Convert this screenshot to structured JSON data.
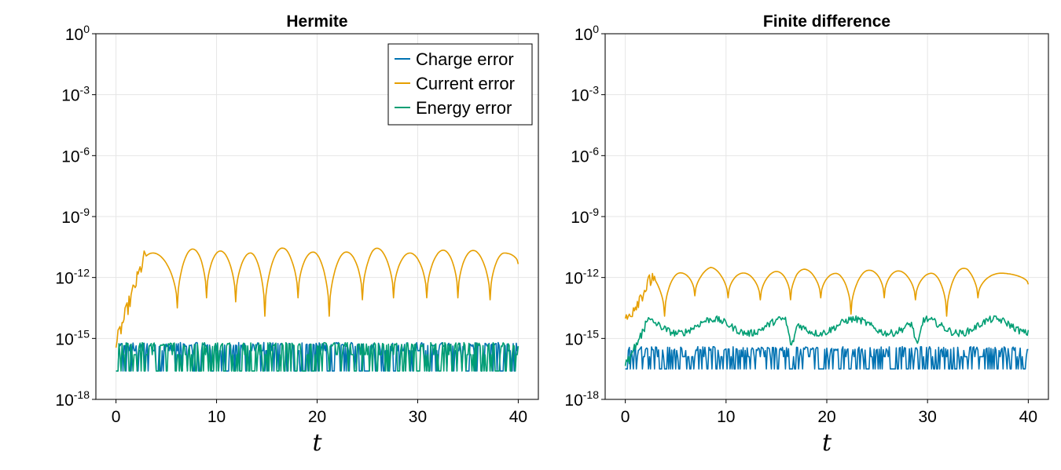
{
  "colors": {
    "charge": "#0072b2",
    "current": "#e69f00",
    "energy": "#009e73",
    "grid": "#e6e6e6",
    "frame": "#333333"
  },
  "legend": {
    "placement": "top-right",
    "entries": [
      "Charge error",
      "Current error",
      "Energy error"
    ]
  },
  "chart_data": [
    {
      "type": "line",
      "title": "Hermite",
      "xlabel": "t",
      "ylabel": "",
      "yscale": "log10",
      "xlim": [
        -2,
        42
      ],
      "ylim": [
        1e-18,
        1
      ],
      "xticks": [
        0,
        10,
        20,
        30,
        40
      ],
      "xtick_labels": [
        "0",
        "10",
        "20",
        "30",
        "40"
      ],
      "yticks": [
        -18,
        -15,
        -12,
        -9,
        -6,
        -3,
        0
      ],
      "ytick_base": "10",
      "ytick_exponents": [
        "-18",
        "-15",
        "-12",
        "-9",
        "-6",
        "-3",
        "0"
      ],
      "grid": true,
      "series": [
        {
          "name": "Charge error",
          "description": "noise level switching between ~3e-17 and ~3e-16 over t in [0, 40]",
          "x_range": [
            0,
            40
          ],
          "log10_levels": [
            -16.6,
            -15.6,
            -15.3
          ]
        },
        {
          "name": "Current error",
          "description": "rises from ~1e-15 to ~1e-12 by t~2.5, then periodic arches peaking ~3e-11 with cusps down to ~1e-14",
          "x_range": [
            0,
            40
          ],
          "start_log10": -15.3,
          "peak_log10": -10.5,
          "cusp_t": [
            1.3,
            6.1,
            9.0,
            11.9,
            14.8,
            18.1,
            21.2,
            24.5,
            27.6,
            30.9,
            34.0,
            37.2
          ],
          "cusp_log10": [
            -14,
            -13.5,
            -13.0,
            -13.2,
            -13.9,
            -13.0,
            -13.9,
            -13.1,
            -13.0,
            -13.0,
            -13.0,
            -13.1
          ]
        },
        {
          "name": "Energy error",
          "description": "noise level between ~3e-17 and ~5e-16",
          "x_range": [
            0,
            40
          ],
          "log10_levels": [
            -16.6,
            -15.8,
            -15.3
          ]
        }
      ]
    },
    {
      "type": "line",
      "title": "Finite difference",
      "xlabel": "t",
      "ylabel": "",
      "yscale": "log10",
      "xlim": [
        -2,
        42
      ],
      "ylim": [
        1e-18,
        1
      ],
      "xticks": [
        0,
        10,
        20,
        30,
        40
      ],
      "xtick_labels": [
        "0",
        "10",
        "20",
        "30",
        "40"
      ],
      "yticks": [
        -18,
        -15,
        -12,
        -9,
        -6,
        -3,
        0
      ],
      "ytick_base": "10",
      "ytick_exponents": [
        "-18",
        "-15",
        "-12",
        "-9",
        "-6",
        "-3",
        "0"
      ],
      "grid": true,
      "series": [
        {
          "name": "Charge error",
          "description": "noise level between ~4e-17 and ~4e-16",
          "x_range": [
            0,
            40
          ],
          "log10_levels": [
            -16.5,
            -15.9,
            -15.5
          ]
        },
        {
          "name": "Current error",
          "description": "rises from ~1e-14 to ~1e-12 by t~2, then periodic arches peaking ~1e-11 with cusps down to ~1e-14",
          "x_range": [
            0,
            40
          ],
          "start_log10": -14.2,
          "peak_log10": -11.5,
          "cusp_t": [
            3.9,
            6.9,
            10.2,
            13.4,
            16.4,
            19.4,
            22.4,
            25.7,
            28.8,
            31.9,
            35.0
          ],
          "cusp_log10": [
            -13.9,
            -12.9,
            -13.0,
            -13.1,
            -13.1,
            -13.0,
            -13.8,
            -13.0,
            -13.1,
            -13.9,
            -13.0
          ]
        },
        {
          "name": "Energy error",
          "description": "rises from ~1e-16 to ~5e-15, wavy between ~1e-15 and ~1e-14 with dips near t~16.5 and t~29",
          "x_range": [
            0,
            40
          ],
          "start_log10": -16.4,
          "mean_log10": -14.4,
          "dip_t": [
            16.5,
            29.0
          ]
        }
      ]
    }
  ]
}
